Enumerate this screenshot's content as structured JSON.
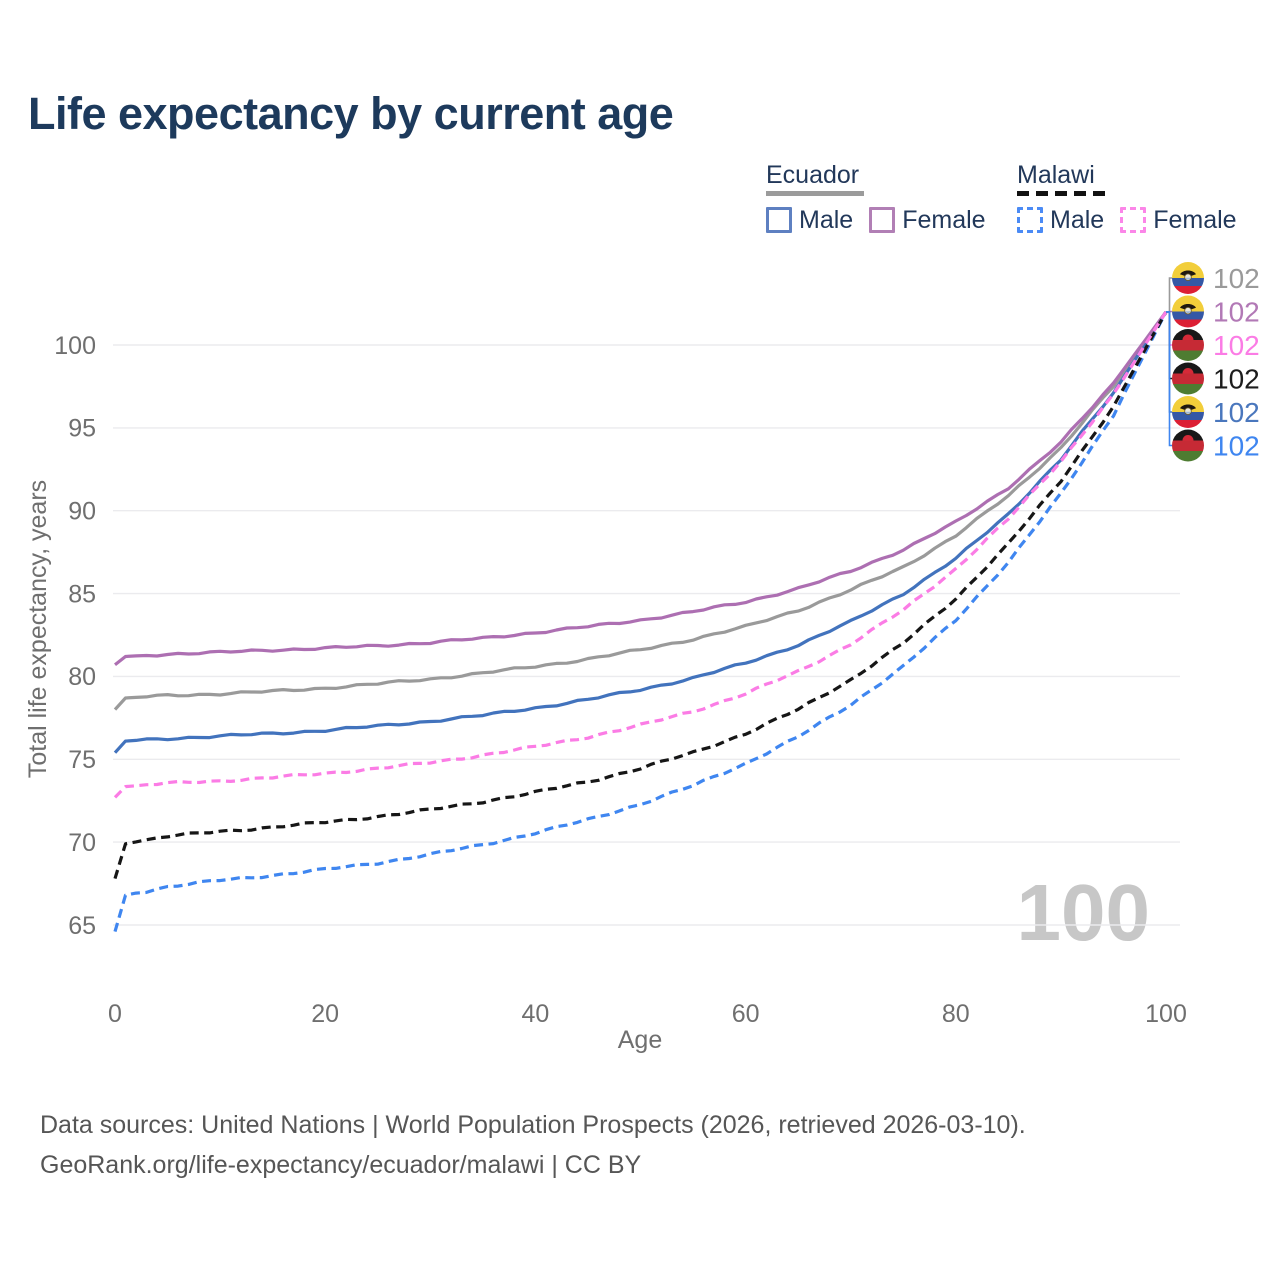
{
  "title": "Life expectancy by current age",
  "watermark": "100",
  "legend": {
    "groups": [
      {
        "title": "Ecuador",
        "line_style": "solid",
        "line_color": "#9b9b9b",
        "items": [
          {
            "label": "Male",
            "color": "#5e80c1",
            "style": "solid"
          },
          {
            "label": "Female",
            "color": "#b17fb5",
            "style": "solid"
          }
        ]
      },
      {
        "title": "Malawi",
        "line_style": "dashed",
        "line_color": "#121212",
        "items": [
          {
            "label": "Male",
            "color": "#4b8bf5",
            "style": "dashed"
          },
          {
            "label": "Female",
            "color": "#fb86e8",
            "style": "dashed"
          }
        ]
      }
    ]
  },
  "footer": {
    "line1": "Data sources: United Nations | World Population Prospects (2026, retrieved 2026-03-10).",
    "line2": "GeoRank.org/life-expectancy/ecuador/malawi | CC BY"
  },
  "chart_data": {
    "type": "line",
    "title": "Life expectancy by current age",
    "xlabel": "Age",
    "ylabel": "Total life expectancy, years",
    "x_ticks": [
      0,
      20,
      40,
      60,
      80,
      100
    ],
    "y_ticks": [
      65,
      70,
      75,
      80,
      85,
      90,
      95,
      100
    ],
    "xlim": [
      0,
      100
    ],
    "ylim": [
      62,
      103.5
    ],
    "grid": "horizontal-only",
    "legend_position": "top-right",
    "axis_text_color": "#6f6f6f",
    "grid_color": "#ebebee",
    "ages": [
      0,
      1,
      5,
      10,
      15,
      20,
      25,
      30,
      35,
      40,
      45,
      50,
      55,
      60,
      65,
      70,
      75,
      80,
      85,
      90,
      95,
      100
    ],
    "series": [
      {
        "id": "ecuador-all",
        "name": "Ecuador",
        "country": "Ecuador",
        "sex": "both",
        "style": "solid",
        "color": "#9a9a9a",
        "end_label": "102",
        "values": [
          78.0,
          78.7,
          78.85,
          78.95,
          79.1,
          79.3,
          79.55,
          79.85,
          80.2,
          80.6,
          81.05,
          81.6,
          82.25,
          83.0,
          84.0,
          85.2,
          86.6,
          88.5,
          90.9,
          93.8,
          97.5,
          102
        ]
      },
      {
        "id": "ecuador-male",
        "name": "Ecuador Male",
        "country": "Ecuador",
        "sex": "male",
        "style": "solid",
        "color": "#4273bd",
        "end_label": "102",
        "values": [
          75.4,
          76.1,
          76.25,
          76.4,
          76.55,
          76.75,
          77.0,
          77.3,
          77.65,
          78.1,
          78.6,
          79.2,
          79.9,
          80.8,
          81.9,
          83.3,
          85.0,
          87.1,
          89.8,
          93.1,
          97.1,
          102
        ]
      },
      {
        "id": "ecuador-female",
        "name": "Ecuador Female",
        "country": "Ecuador",
        "sex": "female",
        "style": "solid",
        "color": "#ad6fb2",
        "end_label": "102",
        "values": [
          80.7,
          81.2,
          81.35,
          81.45,
          81.6,
          81.7,
          81.85,
          82.05,
          82.3,
          82.65,
          83.0,
          83.4,
          83.9,
          84.5,
          85.3,
          86.35,
          87.65,
          89.3,
          91.4,
          94.1,
          97.7,
          102
        ]
      },
      {
        "id": "malawi-male",
        "name": "Malawi Male",
        "country": "Malawi",
        "sex": "male",
        "style": "dashed",
        "color": "#3f86f0",
        "end_label": "102",
        "values": [
          64.6,
          66.8,
          67.3,
          67.7,
          68.0,
          68.35,
          68.75,
          69.25,
          69.85,
          70.55,
          71.35,
          72.3,
          73.4,
          74.75,
          76.35,
          78.3,
          80.6,
          83.4,
          86.9,
          91.0,
          95.8,
          102
        ]
      },
      {
        "id": "malawi-all",
        "name": "Malawi",
        "country": "Malawi",
        "sex": "both",
        "style": "dashed",
        "color": "#161616",
        "end_label": "102",
        "values": [
          67.8,
          69.9,
          70.35,
          70.65,
          70.9,
          71.2,
          71.55,
          71.95,
          72.45,
          73.0,
          73.65,
          74.45,
          75.4,
          76.55,
          78.0,
          79.8,
          82.0,
          84.7,
          88.0,
          91.8,
          96.3,
          102
        ]
      },
      {
        "id": "malawi-female",
        "name": "Malawi Female",
        "country": "Malawi",
        "sex": "female",
        "style": "dashed",
        "color": "#fb7ce5",
        "end_label": "102",
        "values": [
          72.7,
          73.35,
          73.55,
          73.7,
          73.9,
          74.15,
          74.45,
          74.8,
          75.25,
          75.75,
          76.35,
          77.05,
          77.9,
          78.95,
          80.3,
          81.95,
          84.0,
          86.5,
          89.5,
          93.0,
          97.0,
          102
        ]
      }
    ],
    "end_labels": [
      {
        "label": "102",
        "flag": "ecuador",
        "series": "Ecuador",
        "color": "#9a9a9a"
      },
      {
        "label": "102",
        "flag": "ecuador",
        "series": "Ecuador Female",
        "color": "#b279b6"
      },
      {
        "label": "102",
        "flag": "malawi",
        "series": "Malawi Female",
        "color": "#fb7ce5"
      },
      {
        "label": "102",
        "flag": "malawi",
        "series": "Malawi",
        "color": "#1d1d1d"
      },
      {
        "label": "102",
        "flag": "ecuador",
        "series": "Ecuador Male",
        "color": "#4a77bd"
      },
      {
        "label": "102",
        "flag": "malawi",
        "series": "Malawi Male",
        "color": "#3f86f0"
      }
    ]
  }
}
